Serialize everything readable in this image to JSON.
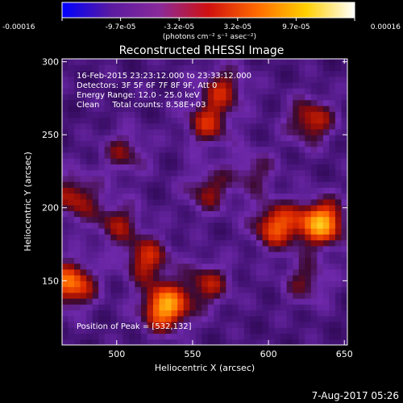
{
  "chart_data": {
    "type": "heatmap",
    "title": "Reconstructed RHESSI Image",
    "xlabel": "Heliocentric X (arcsec)",
    "ylabel": "Heliocentric Y (arcsec)",
    "xlim": [
      464,
      652
    ],
    "ylim": [
      106,
      302
    ],
    "x_ticks": [
      500,
      550,
      600,
      650
    ],
    "y_ticks": [
      150,
      200,
      250,
      300
    ],
    "colorbar": {
      "ticks": [
        "-0.00016",
        "-9.7e-05",
        "-3.2e-05",
        "3.2e-05",
        "9.7e-05",
        "0.00016"
      ],
      "unit_label": "(photons cm⁻² s⁻¹ asec⁻²)",
      "colors": [
        "#0000ff",
        "#5a1aa0",
        "#8a2a9a",
        "#d01010",
        "#ff6a00",
        "#ffd000",
        "#ffffff"
      ]
    },
    "info_lines": [
      "16-Feb-2015 23:23:12.000 to 23:33:12.000",
      "Detectors: 3F 5F 6F 7F 8F 9F, Att 0",
      "Energy Range: 12.0 - 25.0 keV",
      "Clean     Total counts: 8.58E+03"
    ],
    "peak_label": "Position of Peak = [532,132]",
    "sources": [
      {
        "x": 635,
        "y": 190,
        "intensity": 1.0
      },
      {
        "x": 532,
        "y": 132,
        "intensity": 1.0
      },
      {
        "x": 470,
        "y": 148,
        "intensity": 0.85
      },
      {
        "x": 605,
        "y": 188,
        "intensity": 0.75
      },
      {
        "x": 560,
        "y": 212,
        "intensity": 0.45
      },
      {
        "x": 520,
        "y": 165,
        "intensity": 0.6
      },
      {
        "x": 628,
        "y": 260,
        "intensity": 0.6
      },
      {
        "x": 560,
        "y": 258,
        "intensity": 0.55
      },
      {
        "x": 472,
        "y": 208,
        "intensity": 0.55
      },
      {
        "x": 570,
        "y": 282,
        "intensity": 0.5
      },
      {
        "x": 505,
        "y": 238,
        "intensity": 0.4
      },
      {
        "x": 500,
        "y": 190,
        "intensity": 0.45
      },
      {
        "x": 625,
        "y": 150,
        "intensity": 0.4
      },
      {
        "x": 560,
        "y": 148,
        "intensity": 0.5
      },
      {
        "x": 590,
        "y": 225,
        "intensity": 0.35
      }
    ]
  },
  "footer": {
    "timestamp": "7-Aug-2017 05:26"
  }
}
